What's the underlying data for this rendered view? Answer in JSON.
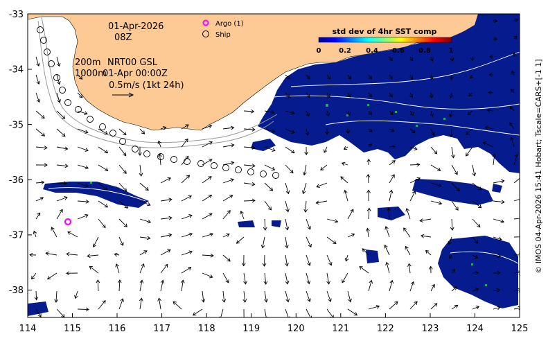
{
  "map": {
    "lon_range": [
      114,
      125
    ],
    "lat_range": [
      -38.5,
      -33
    ],
    "x_ticks": [
      "114",
      "115",
      "116",
      "117",
      "118",
      "119",
      "120",
      "121",
      "122",
      "123",
      "124",
      "125"
    ],
    "y_ticks": [
      "-33",
      "-34",
      "-35",
      "-36",
      "-37",
      "-38"
    ],
    "colors": {
      "land": "#fdc994",
      "sst": "#061c8e",
      "frame": "#000000",
      "argo": "#ff00ff"
    }
  },
  "annotations": {
    "date": "01-Apr-2026",
    "hour": "08Z",
    "depth1": "200m",
    "product": "NRT00 GSL",
    "depth2": "1000m",
    "datetime": "01-Apr 00:00Z",
    "scale": "0.5m/s (1kt 24h)"
  },
  "legend": {
    "argo": "Argo (1)",
    "ship": "Ship"
  },
  "colorbar": {
    "title": "std dev of 4hr SST comp",
    "ticks": [
      "0",
      "0.2",
      "0.4",
      "0.6",
      "0.8",
      "1"
    ]
  },
  "credit": "© IMOS 04-Apr-2026 15:41 Hobart; Tscale=CARS+[-1 1]"
}
